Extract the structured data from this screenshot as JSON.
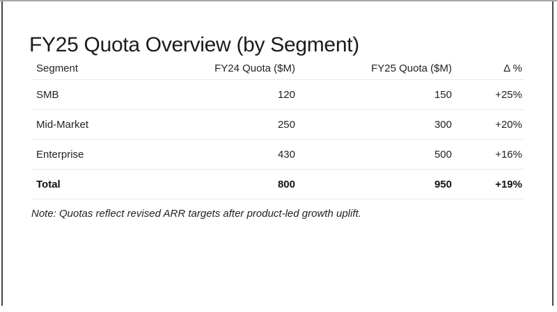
{
  "slide": {
    "title": "FY25 Quota Overview (by Segment)",
    "note": "Note: Quotas reflect revised ARR targets after product-led growth uplift."
  },
  "table": {
    "columns": [
      "Segment",
      "FY24 Quota ($M)",
      "FY25 Quota ($M)",
      "Δ %"
    ],
    "rows": [
      {
        "segment": "SMB",
        "fy24": "120",
        "fy25": "150",
        "delta": "+25%"
      },
      {
        "segment": "Mid-Market",
        "fy24": "250",
        "fy25": "300",
        "delta": "+20%"
      },
      {
        "segment": "Enterprise",
        "fy24": "430",
        "fy25": "500",
        "delta": "+16%"
      },
      {
        "segment": "Total",
        "fy24": "800",
        "fy25": "950",
        "delta": "+19%"
      }
    ]
  },
  "colors": {
    "background": "#ffffff",
    "text": "#1e1e1e",
    "divider": "#e9e9e9",
    "frame_side": "#454545",
    "frame_top": "#a6a6a6"
  }
}
